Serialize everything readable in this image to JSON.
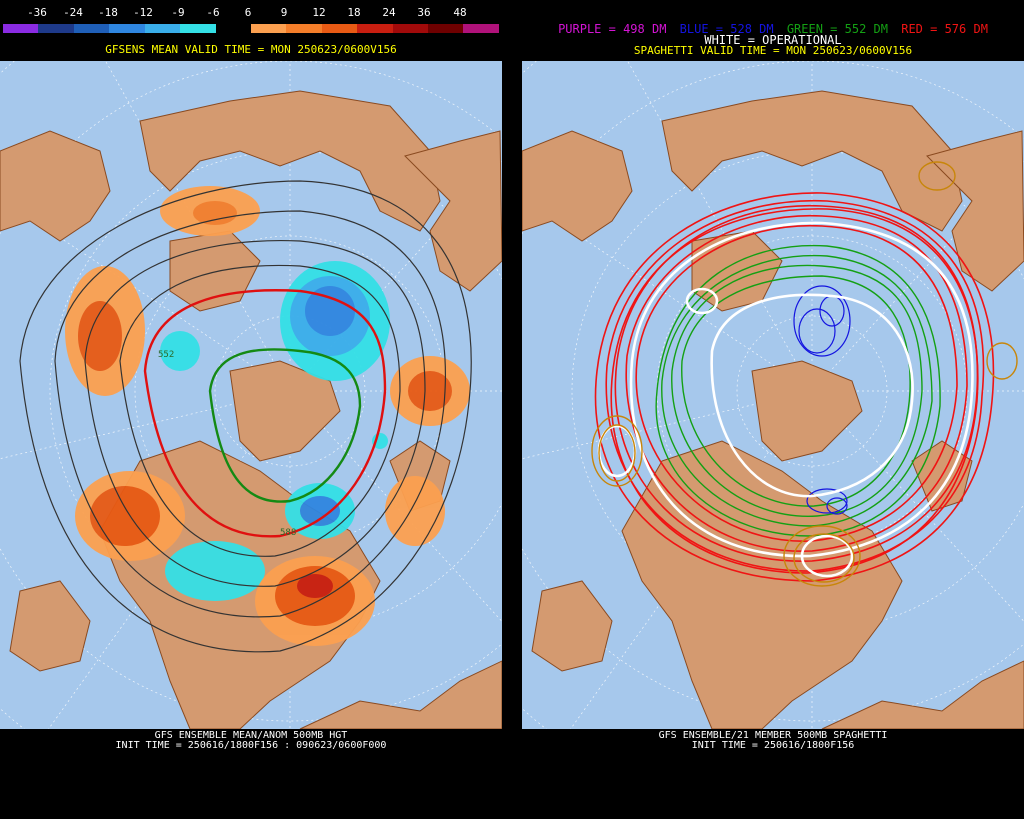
{
  "left": {
    "colorbar": {
      "labels": [
        "-36",
        "-24",
        "-18",
        "-12",
        "-9",
        "-6",
        "6",
        "9",
        "12",
        "18",
        "24",
        "36",
        "48"
      ],
      "colors": [
        "#8a2be2",
        "#1e3a8a",
        "#1f5fb8",
        "#2f86e0",
        "#3aaeea",
        "#34e0e6",
        "#000000",
        "#fca050",
        "#f57e2a",
        "#e85a14",
        "#c81e10",
        "#a10a0a",
        "#6e0000",
        "#b0127a"
      ]
    },
    "valid_time": "GFSENS MEAN VALID TIME = MON 250623/0600V156",
    "caption_line1": "GFS ENSEMBLE MEAN/ANOM 500MB HGT",
    "caption_line2": "INIT TIME = 250616/1800F156 : 090623/0600F000",
    "map_labels": [
      "552",
      "588"
    ]
  },
  "right": {
    "legend": {
      "purple": "PURPLE = 498 DM",
      "blue": "BLUE = 528 DM",
      "green": "GREEN = 552 DM",
      "red": "RED = 576 DM",
      "white": "WHITE = OPERATIONAL"
    },
    "legend_colors": {
      "purple": "#d414d4",
      "blue": "#1414e0",
      "green": "#14a014",
      "red": "#f01414",
      "white": "#ffffff"
    },
    "valid_time": "SPAGHETTI VALID TIME = MON 250623/0600V156",
    "caption_line1": "GFS ENSEMBLE/21 MEMBER 500MB SPAGHETTI",
    "caption_line2": "INIT TIME = 250616/1800F156"
  },
  "colors": {
    "ocean": "#a6c8ec",
    "land": "#d49a70",
    "border": "#8a4a20",
    "grid": "#ffffff",
    "header_text": "#ffff00"
  }
}
